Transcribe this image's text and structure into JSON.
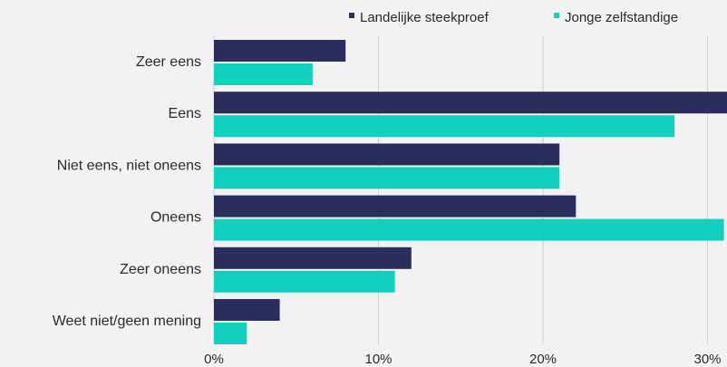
{
  "chart_data": {
    "type": "bar",
    "orientation": "horizontal",
    "categories": [
      "Zeer eens",
      "Eens",
      "Niet eens, niet oneens",
      "Oneens",
      "Zeer oneens",
      "Weet niet/geen mening"
    ],
    "series": [
      {
        "name": "Landelijke steekproef",
        "color": "#2b2d5c",
        "values": [
          8,
          32,
          21,
          22,
          12,
          4
        ]
      },
      {
        "name": "Jonge zelfstandige",
        "color": "#14cfbd",
        "values": [
          6,
          28,
          21,
          31,
          11,
          2
        ]
      }
    ],
    "xlim": [
      0,
      31
    ],
    "xticks": [
      0,
      10,
      20,
      30
    ],
    "tick_suffix": "%",
    "grid": true,
    "legend_position": "top-right"
  }
}
